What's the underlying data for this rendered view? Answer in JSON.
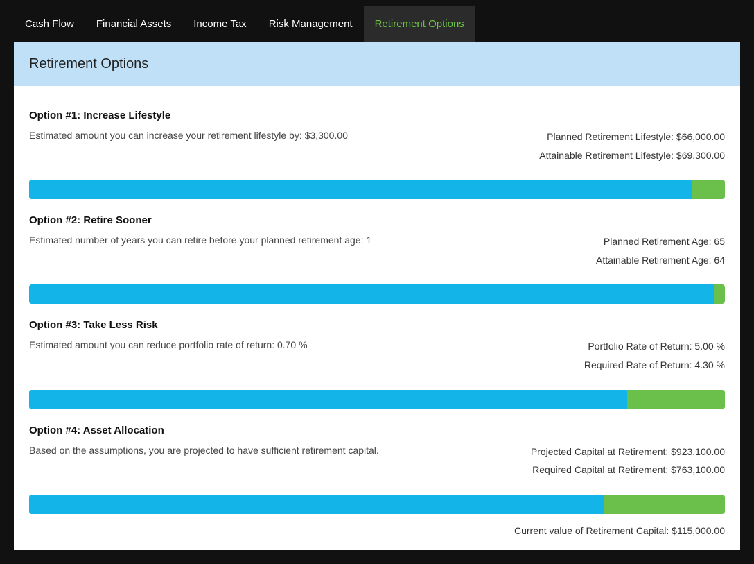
{
  "tabs": {
    "items": [
      {
        "label": "Cash Flow",
        "active": false
      },
      {
        "label": "Financial Assets",
        "active": false
      },
      {
        "label": "Income Tax",
        "active": false
      },
      {
        "label": "Risk Management",
        "active": false
      },
      {
        "label": "Retirement Options",
        "active": true
      }
    ]
  },
  "header": {
    "title": "Retirement Options"
  },
  "colors": {
    "bar_fill": "#13b5e8",
    "bar_track": "#6bbf4b",
    "header_bg": "#bfe0f7",
    "tab_active_text": "#6cc644",
    "tab_active_bg": "#2b2b2b",
    "page_bg": "#111111"
  },
  "options": [
    {
      "title": "Option #1: Increase Lifestyle",
      "desc": "Estimated amount you can increase your retirement lifestyle by: $3,300.00",
      "right1": "Planned Retirement Lifestyle: $66,000.00",
      "right2": "Attainable Retirement Lifestyle: $69,300.00",
      "bar_pct": 95.3
    },
    {
      "title": "Option #2: Retire Sooner",
      "desc": "Estimated number of years you can retire before your planned retirement age: 1",
      "right1": "Planned Retirement Age: 65",
      "right2": "Attainable Retirement Age: 64",
      "bar_pct": 98.5
    },
    {
      "title": "Option #3: Take Less Risk",
      "desc": "Estimated amount you can reduce portfolio rate of return: 0.70 %",
      "right1": "Portfolio Rate of Return: 5.00 %",
      "right2": "Required Rate of Return: 4.30 %",
      "bar_pct": 86.0
    },
    {
      "title": "Option #4: Asset Allocation",
      "desc": "Based on the assumptions, you are projected to have sufficient retirement capital.",
      "right1": "Projected Capital at Retirement: $923,100.00",
      "right2": "Required Capital at Retirement: $763,100.00",
      "bar_pct": 82.7
    }
  ],
  "footer": {
    "text": "Current value of Retirement Capital: $115,000.00"
  }
}
